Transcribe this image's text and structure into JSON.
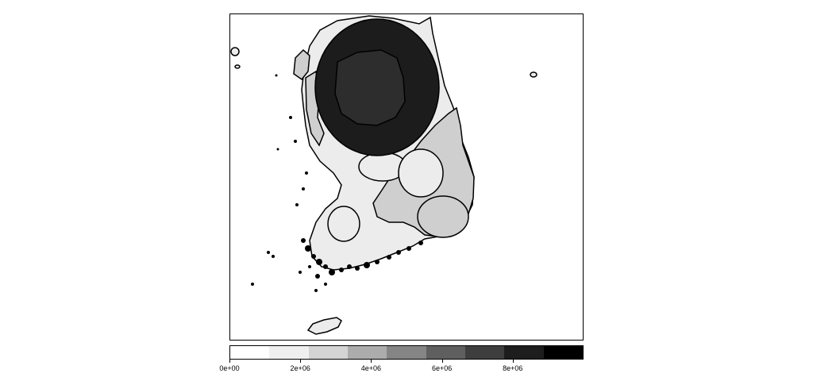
{
  "map": {
    "region_fill_colors": {
      "high": "#1c1c1c",
      "upper_mid": "#2d2d2d",
      "mid": "#cfcfcf",
      "low": "#ececec",
      "background": "#ffffff",
      "outline": "#000000"
    }
  },
  "legend": {
    "ticks": [
      {
        "label": "0e+00",
        "value": 0
      },
      {
        "label": "2e+06",
        "value": 2000000
      },
      {
        "label": "4e+06",
        "value": 4000000
      },
      {
        "label": "6e+06",
        "value": 6000000
      },
      {
        "label": "8e+06",
        "value": 8000000
      }
    ],
    "range": [
      0,
      10000000
    ],
    "bins": [
      {
        "from": 0,
        "to": 1111111,
        "color": "#ffffff"
      },
      {
        "from": 1111111,
        "to": 2222222,
        "color": "#efefef"
      },
      {
        "from": 2222222,
        "to": 3333333,
        "color": "#d4d4d4"
      },
      {
        "from": 3333333,
        "to": 4444444,
        "color": "#acacac"
      },
      {
        "from": 4444444,
        "to": 5555556,
        "color": "#858585"
      },
      {
        "from": 5555556,
        "to": 6666667,
        "color": "#5f5f5f"
      },
      {
        "from": 6666667,
        "to": 7777778,
        "color": "#3e3e3e"
      },
      {
        "from": 7777778,
        "to": 8888889,
        "color": "#1d1d1d"
      },
      {
        "from": 8888889,
        "to": 10000000,
        "color": "#000000"
      }
    ]
  }
}
